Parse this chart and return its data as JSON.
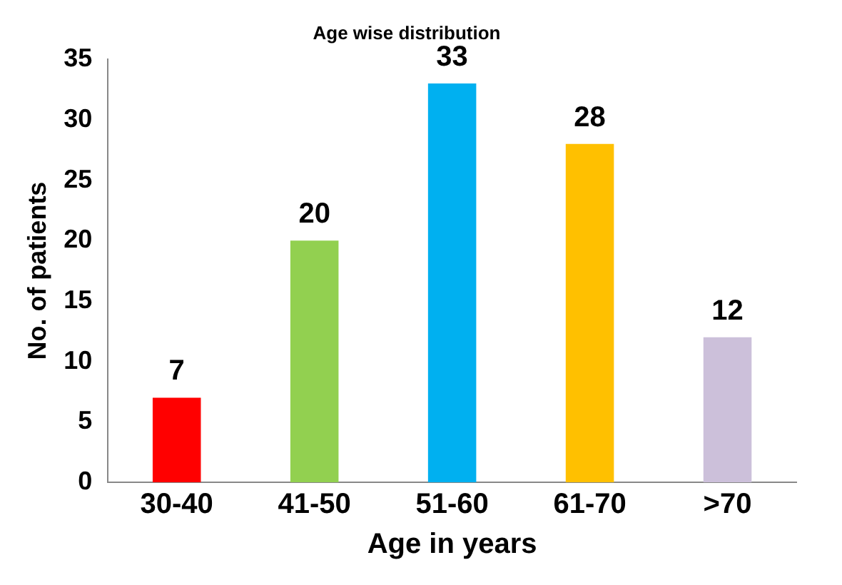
{
  "chart_data": {
    "type": "bar",
    "title": "Age wise distribution",
    "xlabel": "Age in years",
    "ylabel": "No. of patients",
    "categories": [
      "30-40",
      "41-50",
      "51-60",
      "61-70",
      ">70"
    ],
    "values": [
      7,
      20,
      33,
      28,
      12
    ],
    "colors": [
      "#ff0000",
      "#92d050",
      "#00b0f0",
      "#ffc000",
      "#ccc0da"
    ],
    "ylim": [
      0,
      35
    ],
    "yticks": [
      0,
      5,
      10,
      15,
      20,
      25,
      30,
      35
    ],
    "grid": false,
    "legend": false,
    "data_labels": true
  }
}
